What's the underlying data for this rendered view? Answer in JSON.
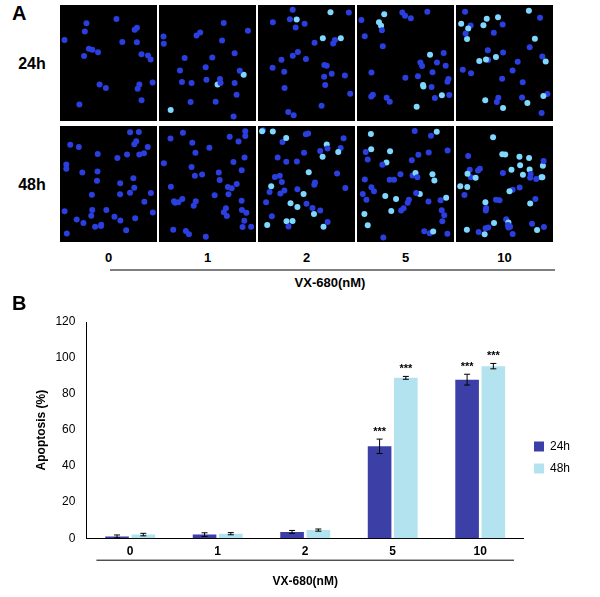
{
  "panel_a": {
    "panel_label": "A",
    "rows": [
      "24h",
      "48h"
    ],
    "columns": [
      0,
      1,
      2,
      5,
      10
    ],
    "xlabel": "VX-680(nM)"
  },
  "chart_data": {
    "panel_label": "B",
    "type": "bar",
    "categories": [
      "0",
      "1",
      "2",
      "5",
      "10"
    ],
    "xlabel": "VX-680(nM)",
    "ylabel": "Apoptosis (%)",
    "ylim": [
      0,
      120
    ],
    "yticks": [
      0,
      20,
      40,
      60,
      80,
      100,
      120
    ],
    "grid": false,
    "legend": "right",
    "series": [
      {
        "name": "24h",
        "color": "#3b3fa6",
        "values": [
          1,
          2,
          3.5,
          51,
          88
        ],
        "errors": [
          0.8,
          1,
          0.8,
          4,
          3
        ],
        "annotations": [
          null,
          null,
          null,
          "***",
          "***"
        ]
      },
      {
        "name": "48h",
        "color": "#b3e3ef",
        "values": [
          2,
          2.5,
          4.5,
          89,
          95.5
        ],
        "errors": [
          0.7,
          0.6,
          0.6,
          0.8,
          1.5
        ],
        "annotations": [
          null,
          null,
          null,
          "***",
          "***"
        ]
      }
    ]
  }
}
